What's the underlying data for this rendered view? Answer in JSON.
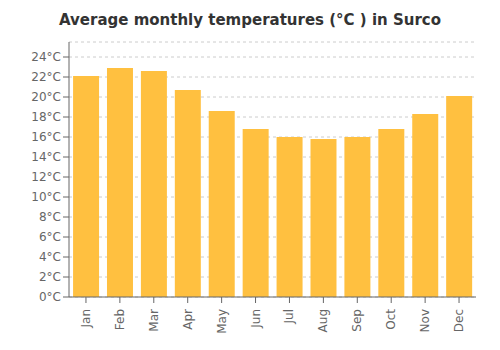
{
  "chart_data": {
    "type": "bar",
    "title": "Average monthly temperatures (°C ) in Surco",
    "categories": [
      "Jan",
      "Feb",
      "Mar",
      "Apr",
      "May",
      "Jun",
      "Jul",
      "Aug",
      "Sep",
      "Oct",
      "Nov",
      "Dec"
    ],
    "values": [
      22.1,
      22.9,
      22.6,
      20.7,
      18.6,
      16.8,
      16.0,
      15.8,
      16.0,
      16.8,
      18.3,
      20.1
    ],
    "color": "#FFC040",
    "ylim": [
      0,
      25.5
    ],
    "yticks": [
      {
        "value": 0,
        "label": "0°C"
      },
      {
        "value": 2,
        "label": "2°C"
      },
      {
        "value": 4,
        "label": "4°C"
      },
      {
        "value": 6,
        "label": "6°C"
      },
      {
        "value": 8,
        "label": "8°C"
      },
      {
        "value": 10,
        "label": "10°C"
      },
      {
        "value": 12,
        "label": "12°C"
      },
      {
        "value": 14,
        "label": "14°C"
      },
      {
        "value": 16,
        "label": "16°C"
      },
      {
        "value": 18,
        "label": "18°C"
      },
      {
        "value": 20,
        "label": "20°C"
      },
      {
        "value": 22,
        "label": "22°C"
      },
      {
        "value": 24,
        "label": "24°C"
      }
    ],
    "grid": true
  }
}
